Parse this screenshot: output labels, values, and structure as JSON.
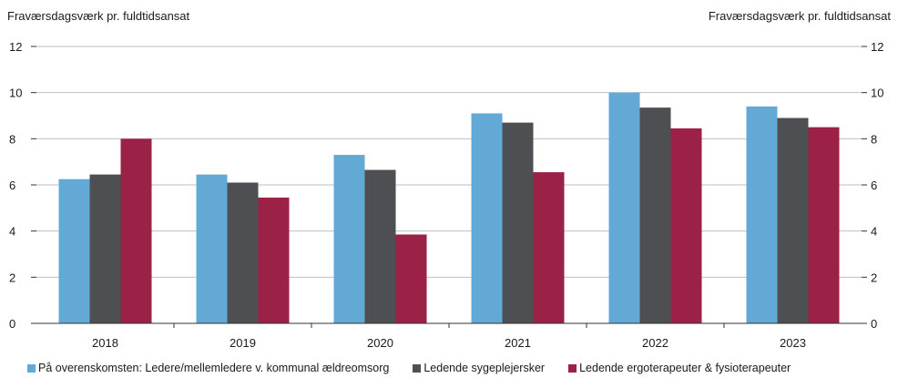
{
  "chart_data": {
    "type": "bar",
    "ylabel_left": "Fraværsdagsværk pr. fuldtidsansat",
    "ylabel_right": "Fraværsdagsværk pr. fuldtidsansat",
    "categories": [
      "2018",
      "2019",
      "2020",
      "2021",
      "2022",
      "2023"
    ],
    "ylim": [
      0,
      12
    ],
    "yticks": [
      0,
      2,
      4,
      6,
      8,
      10,
      12
    ],
    "grid": true,
    "legend_position": "bottom",
    "series": [
      {
        "name": "På overenskomsten: Ledere/mellemledere v. kommunal ældreomsorg",
        "color": "#63a9d6",
        "values": [
          6.25,
          6.45,
          7.3,
          9.1,
          10.0,
          9.4
        ]
      },
      {
        "name": "Ledende sygeplejersker",
        "color": "#4d4f53",
        "values": [
          6.45,
          6.1,
          6.65,
          8.7,
          9.35,
          8.9
        ]
      },
      {
        "name": "Ledende ergoterapeuter & fysioterapeuter",
        "color": "#9b2246",
        "values": [
          8.0,
          5.45,
          3.85,
          6.55,
          8.45,
          8.5
        ]
      }
    ]
  }
}
